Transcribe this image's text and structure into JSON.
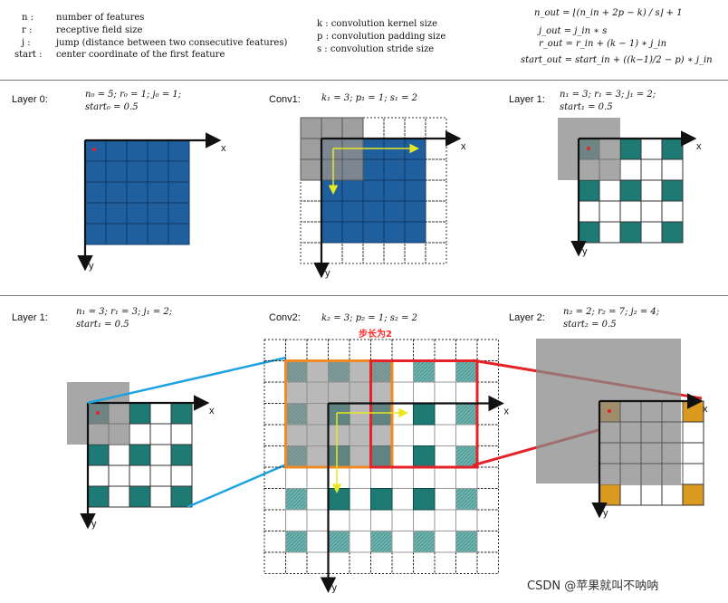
{
  "legend_left": [
    {
      "sym": "n :",
      "text": "number of features"
    },
    {
      "sym": "r :",
      "text": "receptive field size"
    },
    {
      "sym": "j :",
      "text": "jump (distance between two consecutive features)"
    },
    {
      "sym": "start :",
      "text": "center coordinate of the first feature"
    }
  ],
  "legend_mid": [
    "k : convolution kernel size",
    "p : convolution padding size",
    "s : convolution stride size"
  ],
  "formulas": [
    "n_out = ⌊(n_in + 2p − k) / s⌋ + 1",
    "j_out = j_in ∗ s",
    "r_out = r_in + (k − 1) ∗ j_in",
    "start_out = start_in + ((k−1)/2 − p) ∗ j_in"
  ],
  "top_row": {
    "layer0": {
      "label": "Layer 0:",
      "params": "n₀ = 5;  r₀ = 1;  j₀ = 1;",
      "start": "start₀ = 0.5"
    },
    "conv1": {
      "label": "Conv1:",
      "params": "k₁ = 3;  p₁ = 1;  s₁ = 2"
    },
    "layer1": {
      "label": "Layer 1:",
      "params": "n₁ = 3;  r₁ = 3;  j₁ = 2;",
      "start": "start₁ = 0.5"
    }
  },
  "bottom_row": {
    "layer1": {
      "label": "Layer 1:",
      "params": "n₁ = 3;  r₁ = 3; j₁ = 2;",
      "start": "start₁ = 0.5"
    },
    "conv2": {
      "label": "Conv2:",
      "params": "k₂ = 3;  p₂ = 1;  s₂ = 2",
      "annotation": "步长为2"
    },
    "layer2": {
      "label": "Layer 2:",
      "params": "n₂ = 2;  r₂ = 7; j₂ = 4;",
      "start": "start₂ = 0.5"
    }
  },
  "axis": {
    "x": "x",
    "y": "y"
  },
  "watermark": "CSDN @苹果就叫不呐呐",
  "colors": {
    "blue": "#1f5f9e",
    "teal": "#1e7a74",
    "gray": "#8a8a8a",
    "red": "#e42227",
    "orange": "#f08a24",
    "cyan": "#1aa3e0",
    "yellow": "#e8e820",
    "gold": "#d99a1f"
  }
}
